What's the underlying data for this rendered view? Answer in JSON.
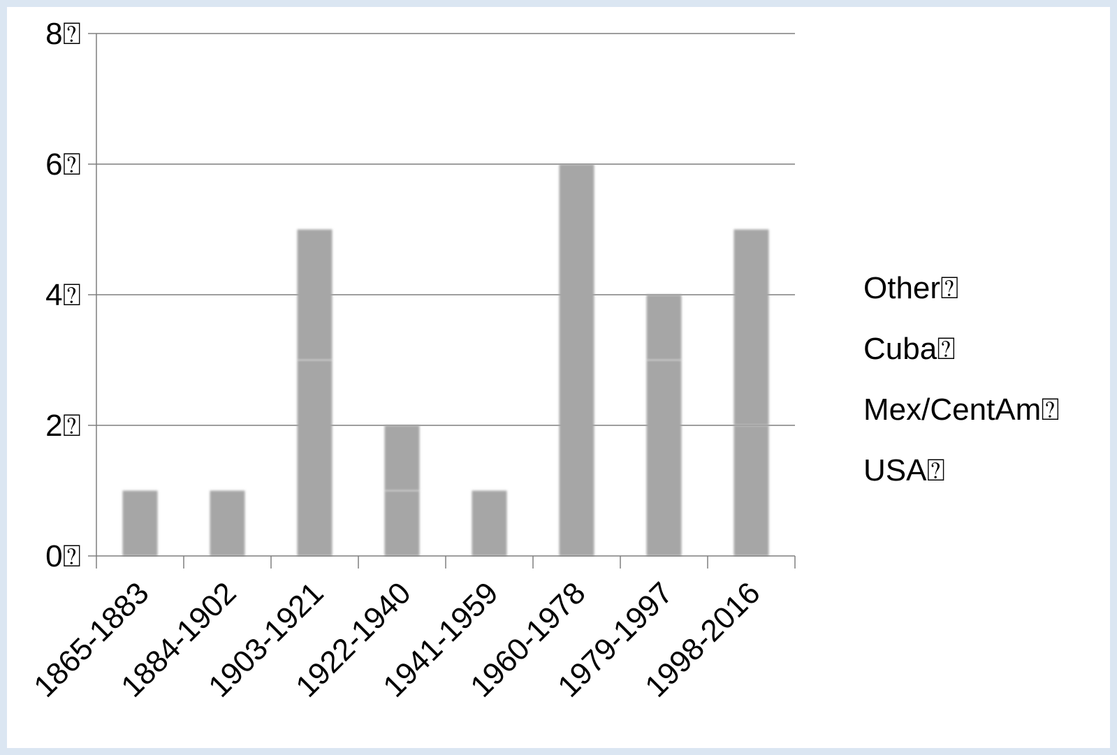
{
  "chart_data": {
    "type": "bar",
    "stacked": true,
    "categories": [
      "1865-1883",
      "1884-1902",
      "1903-1921",
      "1922-1940",
      "1941-1959",
      "1960-1978",
      "1979-1997",
      "1998-2016"
    ],
    "series": [
      {
        "name": "USA",
        "values": [
          1,
          1,
          3,
          1,
          1,
          6,
          3,
          2
        ]
      },
      {
        "name": "Mex/CentAm",
        "values": [
          0,
          0,
          0,
          0,
          0,
          0,
          0,
          0
        ]
      },
      {
        "name": "Cuba",
        "values": [
          0,
          0,
          2,
          1,
          0,
          0,
          1,
          3
        ]
      },
      {
        "name": "Other",
        "values": [
          0,
          0,
          0,
          0,
          0,
          0,
          0,
          0
        ]
      }
    ],
    "legend_order": [
      "Other",
      "Cuba",
      "Mex/CentAm",
      "USA"
    ],
    "legend_suffix": "⍰",
    "y_ticks": [
      "0⍰",
      "2⍰",
      "4⍰",
      "6⍰",
      "8⍰"
    ],
    "ylim": [
      0,
      8
    ],
    "grid": true,
    "legend_position": "right",
    "title": "",
    "xlabel": "",
    "ylabel": "",
    "colors": {
      "bar": "#a6a6a6",
      "segment_line": "#9a9a9a",
      "grid": "#7f7f7f",
      "axis": "#7f7f7f"
    }
  }
}
